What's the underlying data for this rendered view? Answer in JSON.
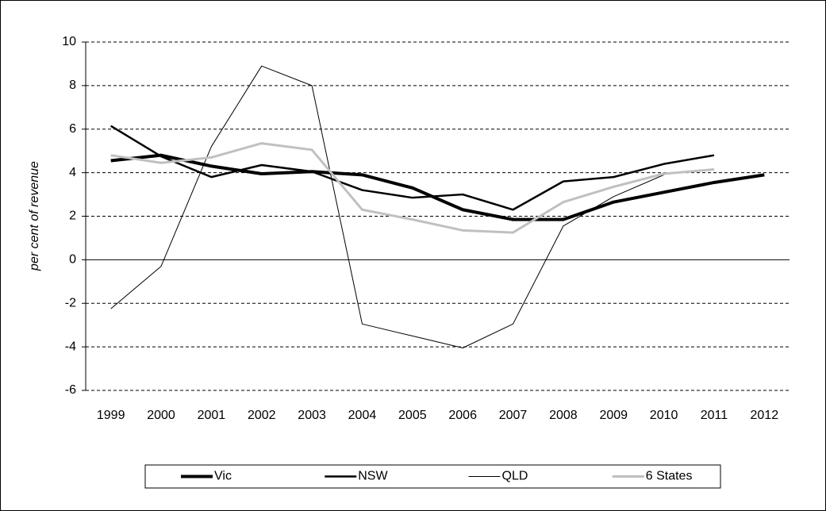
{
  "chart_data": {
    "type": "line",
    "y_label": "per cent of revenue",
    "categories": [
      "1999",
      "2000",
      "2001",
      "2002",
      "2003",
      "2004",
      "2005",
      "2006",
      "2007",
      "2008",
      "2009",
      "2010",
      "2011",
      "2012"
    ],
    "series": [
      {
        "name": "Vic",
        "color": "#000000",
        "width": 4,
        "values": [
          4.55,
          4.8,
          4.3,
          3.95,
          4.05,
          3.9,
          3.3,
          2.3,
          1.85,
          1.85,
          2.65,
          3.1,
          3.55,
          3.9
        ]
      },
      {
        "name": "NSW",
        "color": "#000000",
        "width": 2.5,
        "values": [
          6.15,
          4.75,
          3.8,
          4.35,
          4.05,
          3.2,
          2.85,
          3.0,
          2.3,
          3.6,
          3.8,
          4.4,
          4.8,
          null
        ]
      },
      {
        "name": "QLD",
        "color": "#000000",
        "width": 1,
        "values": [
          -2.25,
          -0.3,
          5.2,
          8.9,
          8.0,
          -2.95,
          -3.5,
          -4.05,
          -2.95,
          1.55,
          2.9,
          3.9,
          null,
          null
        ]
      },
      {
        "name": "6 States",
        "color": "#c0c0c0",
        "width": 3,
        "values": [
          4.8,
          4.45,
          4.7,
          5.35,
          5.05,
          2.3,
          1.85,
          1.35,
          1.25,
          2.65,
          3.35,
          3.95,
          4.15,
          null
        ]
      }
    ],
    "ylim": [
      -6,
      10
    ],
    "yticks": [
      -6,
      -4,
      -2,
      0,
      2,
      4,
      6,
      8,
      10
    ],
    "grid": true,
    "legend": "bottom"
  }
}
